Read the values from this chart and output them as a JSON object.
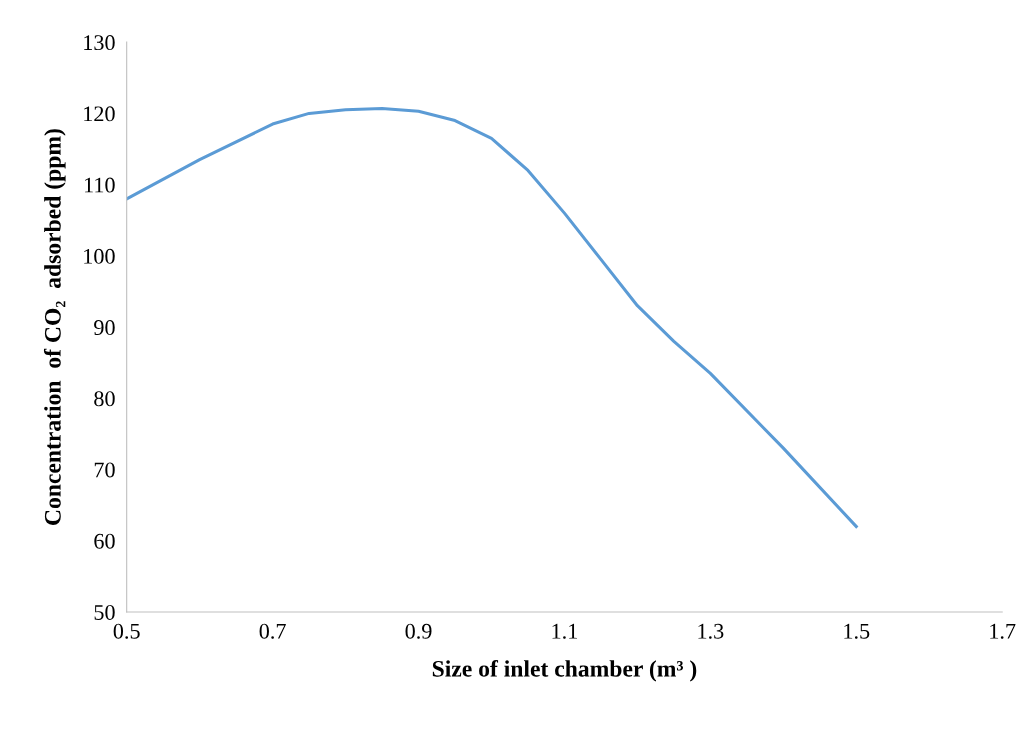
{
  "chart_data": {
    "type": "line",
    "xlabel": "Size of inlet chamber (m³ )",
    "ylabel": "Concentration  of CO₂  adsorbed (ppm)",
    "x": [
      0.5,
      0.6,
      0.7,
      0.75,
      0.8,
      0.85,
      0.9,
      0.95,
      1.0,
      1.05,
      1.1,
      1.15,
      1.2,
      1.25,
      1.3,
      1.4,
      1.5
    ],
    "series": [
      {
        "color": "#5b9bd5",
        "values": [
          108,
          113.5,
          118.5,
          120,
          120.5,
          120.7,
          120.3,
          119,
          116.5,
          112,
          106,
          99.5,
          93,
          88,
          83.5,
          73,
          62
        ]
      }
    ],
    "xlim": [
      0.5,
      1.7
    ],
    "xticks": [
      0.5,
      0.7,
      0.9,
      1.1,
      1.3,
      1.5,
      1.7
    ],
    "ylim": [
      50,
      130
    ],
    "yticks": [
      50,
      60,
      70,
      80,
      90,
      100,
      110,
      120,
      130
    ],
    "grid": false,
    "legend": false,
    "marker": "none",
    "line_style": "solid"
  }
}
